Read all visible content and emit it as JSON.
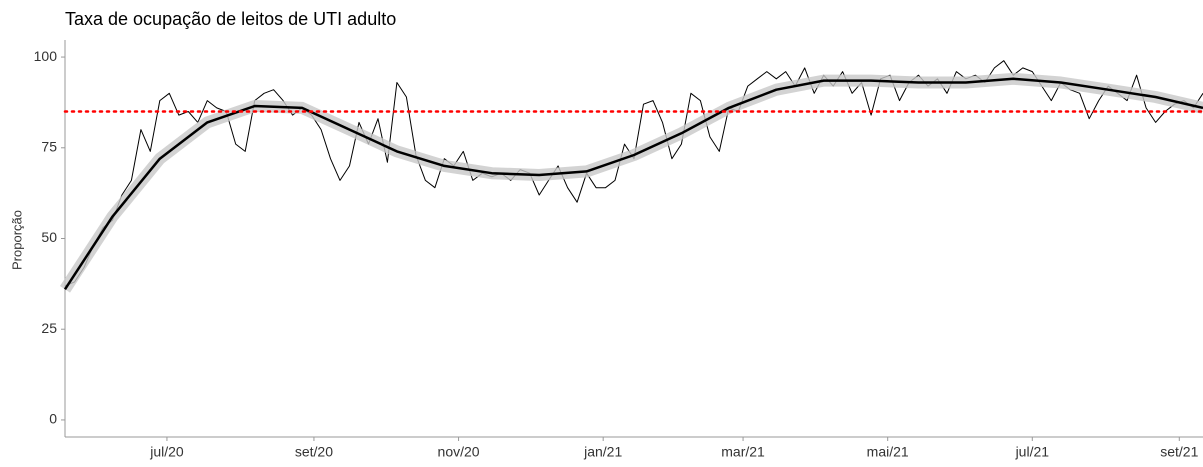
{
  "chart_data": {
    "type": "line",
    "title": "Taxa de ocupação de leitos de UTI adulto",
    "y_label": "Proporção",
    "xlim": [
      0,
      480
    ],
    "ylim": [
      -4.7,
      104.7
    ],
    "yticks": [
      0,
      25,
      50,
      75,
      100
    ],
    "xticks": [
      {
        "value": 43,
        "label": "jul/20"
      },
      {
        "value": 105,
        "label": "set/20"
      },
      {
        "value": 166,
        "label": "nov/20"
      },
      {
        "value": 227,
        "label": "jan/21"
      },
      {
        "value": 286,
        "label": "mar/21"
      },
      {
        "value": 347,
        "label": "mai/21"
      },
      {
        "value": 408,
        "label": "jul/21"
      },
      {
        "value": 470,
        "label": "set/21"
      }
    ],
    "hline": {
      "value": 85,
      "color": "#ff0000"
    },
    "series": [
      {
        "color": "#000000",
        "width": 1,
        "x": [
          0,
          4,
          8,
          12,
          16,
          20,
          24,
          28,
          32,
          36,
          40,
          44,
          48,
          52,
          56,
          60,
          64,
          68,
          72,
          76,
          80,
          84,
          88,
          92,
          96,
          100,
          104,
          108,
          112,
          116,
          120,
          124,
          128,
          132,
          136,
          140,
          144,
          148,
          152,
          156,
          160,
          164,
          168,
          172,
          176,
          180,
          184,
          188,
          192,
          196,
          200,
          204,
          208,
          212,
          216,
          220,
          224,
          228,
          232,
          236,
          240,
          244,
          248,
          252,
          256,
          260,
          264,
          268,
          272,
          276,
          280,
          284,
          288,
          292,
          296,
          300,
          304,
          308,
          312,
          316,
          320,
          324,
          328,
          332,
          336,
          340,
          344,
          348,
          352,
          356,
          360,
          364,
          368,
          372,
          376,
          380,
          384,
          388,
          392,
          396,
          400,
          404,
          408,
          412,
          416,
          420,
          424,
          428,
          432,
          436,
          440,
          444,
          448,
          452,
          456,
          460,
          464,
          468,
          472,
          476,
          480
        ],
        "values": [
          37,
          38,
          42,
          48,
          53,
          55,
          62,
          66,
          80,
          74,
          88,
          90,
          84,
          85,
          82,
          88,
          86,
          85,
          76,
          74,
          88,
          90,
          91,
          88,
          84,
          86,
          84,
          80,
          72,
          66,
          70,
          82,
          76,
          83,
          71,
          93,
          89,
          73,
          66,
          64,
          72,
          70,
          74,
          66,
          68,
          67,
          68,
          66,
          69,
          68,
          62,
          66,
          70,
          64,
          60,
          68,
          64,
          64,
          66,
          76,
          72,
          87,
          88,
          82,
          72,
          76,
          90,
          88,
          78,
          74,
          86,
          85,
          92,
          94,
          96,
          94,
          96,
          92,
          97,
          90,
          95,
          92,
          96,
          90,
          93,
          84,
          94,
          95,
          88,
          93,
          95,
          92,
          94,
          90,
          96,
          94,
          95,
          93,
          97,
          99,
          95,
          97,
          96,
          92,
          88,
          93,
          91,
          90,
          83,
          88,
          92,
          90,
          88,
          95,
          86,
          82,
          85,
          87,
          88,
          86,
          90
        ]
      },
      {
        "color": "#000000",
        "width": 2.5,
        "band": true,
        "x": [
          0,
          20,
          40,
          60,
          80,
          100,
          120,
          140,
          160,
          180,
          200,
          220,
          240,
          260,
          280,
          300,
          320,
          340,
          360,
          380,
          400,
          420,
          440,
          460,
          480
        ],
        "values": [
          36,
          56,
          72,
          82,
          86.5,
          86,
          80,
          74,
          70,
          68,
          67.5,
          68.5,
          73,
          79,
          86,
          91,
          93.5,
          93.5,
          93,
          93,
          94,
          93,
          91,
          89,
          86
        ]
      }
    ]
  }
}
